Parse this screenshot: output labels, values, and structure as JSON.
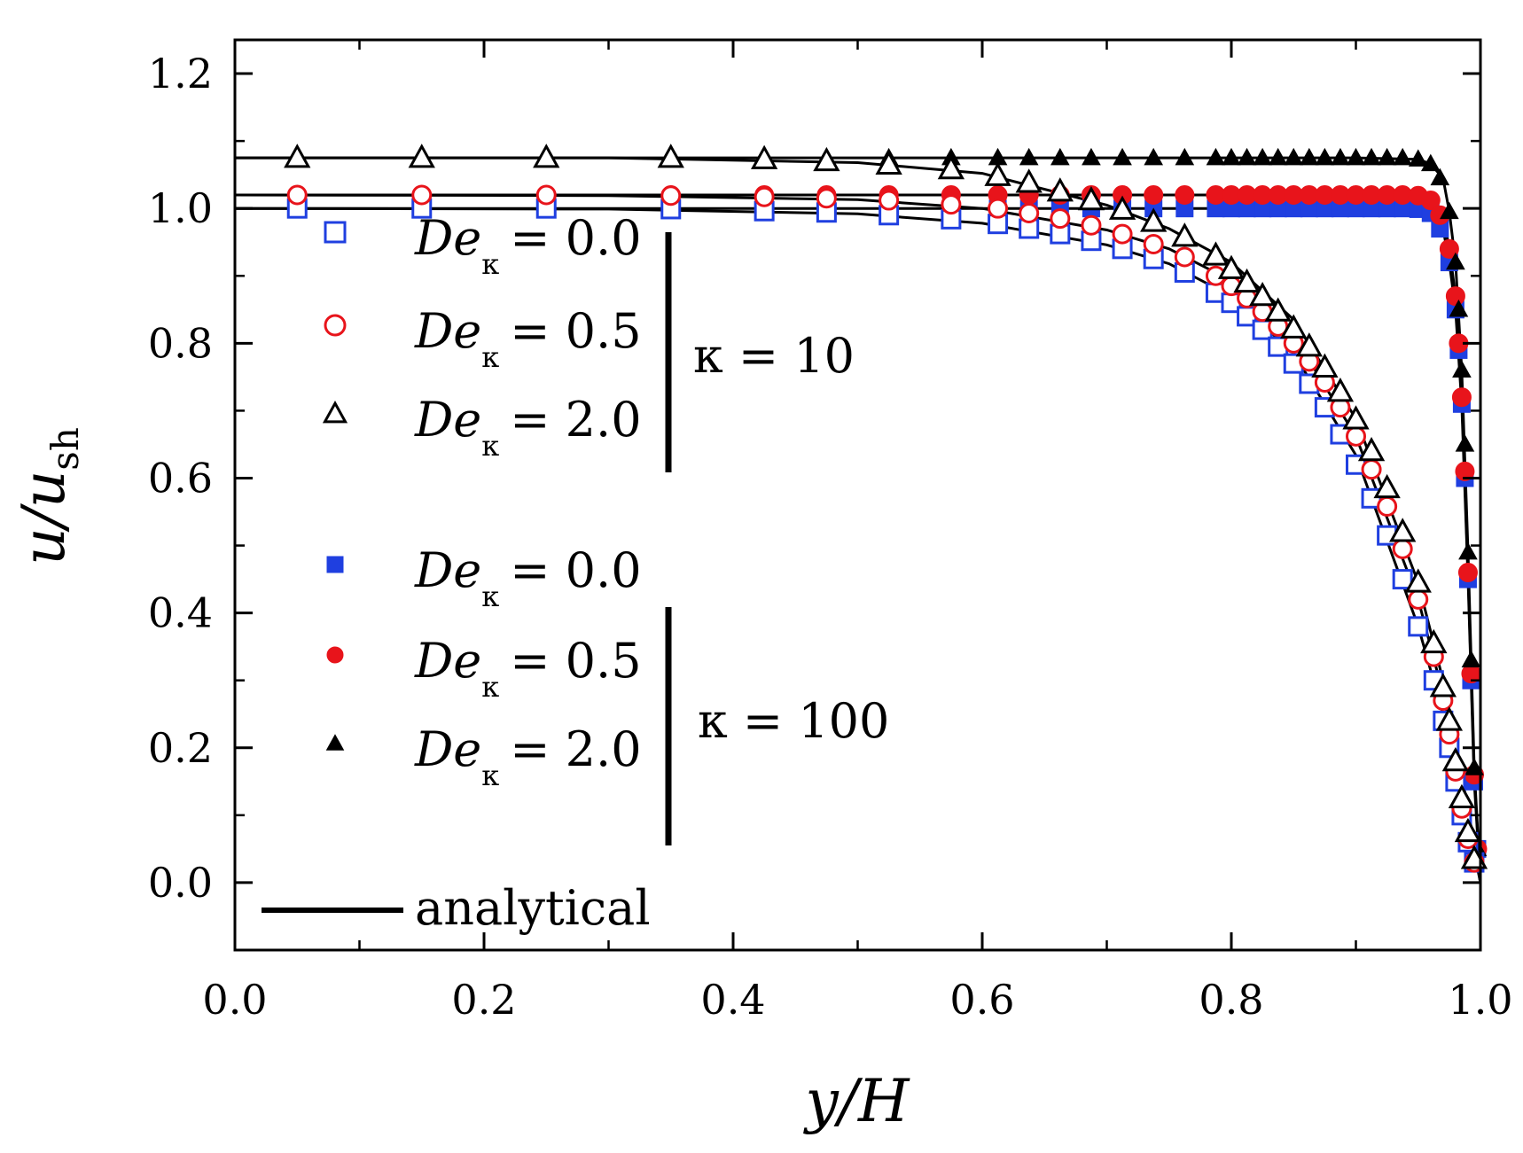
{
  "chart_data": {
    "type": "scatter",
    "title": "",
    "xlabel": "y/H",
    "ylabel_main": "u/u",
    "ylabel_sub": "sh",
    "xlim": [
      0.0,
      1.0
    ],
    "ylim": [
      -0.1,
      1.25
    ],
    "xticks": [
      "0.0",
      "0.2",
      "0.4",
      "0.6",
      "0.8",
      "1.0"
    ],
    "yticks": [
      "0.0",
      "0.2",
      "0.4",
      "0.6",
      "0.8",
      "1.0",
      "1.2"
    ],
    "legend": {
      "placement": "left",
      "de_symbol": "De",
      "de_sub": "κ",
      "group1_label": "κ = 10",
      "group2_label": "κ = 100",
      "entries": [
        {
          "value_text": "= 0.0"
        },
        {
          "value_text": "= 0.5"
        },
        {
          "value_text": "= 2.0"
        },
        {
          "value_text": "= 0.0"
        },
        {
          "value_text": "= 0.5"
        },
        {
          "value_text": "= 2.0"
        }
      ],
      "analytical_label": "analytical"
    },
    "series": [
      {
        "name": "De_k = 0.0, k = 10",
        "kappa": 10,
        "De": 0.0,
        "marker": "square",
        "filled": false,
        "color": "#1f3fe0",
        "x": [
          0.05,
          0.15,
          0.25,
          0.35,
          0.425,
          0.475,
          0.525,
          0.575,
          0.6125,
          0.6375,
          0.6625,
          0.6875,
          0.7125,
          0.7375,
          0.7625,
          0.7875,
          0.8,
          0.8125,
          0.825,
          0.8375,
          0.85,
          0.8625,
          0.875,
          0.8875,
          0.9,
          0.9125,
          0.925,
          0.9375,
          0.95,
          0.9625,
          0.97,
          0.975,
          0.98,
          0.985,
          0.99,
          0.995
        ],
        "y": [
          1.0,
          1.0,
          1.0,
          0.999,
          0.996,
          0.994,
          0.99,
          0.984,
          0.977,
          0.97,
          0.962,
          0.952,
          0.94,
          0.925,
          0.905,
          0.875,
          0.86,
          0.84,
          0.82,
          0.795,
          0.77,
          0.74,
          0.705,
          0.665,
          0.62,
          0.57,
          0.515,
          0.45,
          0.38,
          0.3,
          0.24,
          0.2,
          0.15,
          0.1,
          0.06,
          0.03
        ]
      },
      {
        "name": "De_k = 0.5, k = 10",
        "kappa": 10,
        "De": 0.5,
        "marker": "circle",
        "filled": false,
        "color": "#e8141b",
        "x": [
          0.05,
          0.15,
          0.25,
          0.35,
          0.425,
          0.475,
          0.525,
          0.575,
          0.6125,
          0.6375,
          0.6625,
          0.6875,
          0.7125,
          0.7375,
          0.7625,
          0.7875,
          0.8,
          0.8125,
          0.825,
          0.8375,
          0.85,
          0.8625,
          0.875,
          0.8875,
          0.9,
          0.9125,
          0.925,
          0.9375,
          0.95,
          0.9625,
          0.97,
          0.975,
          0.98,
          0.985,
          0.99,
          0.995
        ],
        "y": [
          1.02,
          1.02,
          1.02,
          1.019,
          1.017,
          1.015,
          1.012,
          1.006,
          1.0,
          0.993,
          0.985,
          0.975,
          0.962,
          0.947,
          0.928,
          0.9,
          0.885,
          0.867,
          0.847,
          0.825,
          0.8,
          0.773,
          0.742,
          0.705,
          0.662,
          0.613,
          0.558,
          0.495,
          0.42,
          0.335,
          0.27,
          0.22,
          0.165,
          0.11,
          0.065,
          0.03
        ]
      },
      {
        "name": "De_k = 2.0, k = 10",
        "kappa": 10,
        "De": 2.0,
        "marker": "triangle",
        "filled": false,
        "color": "#000000",
        "x": [
          0.05,
          0.15,
          0.25,
          0.35,
          0.425,
          0.475,
          0.525,
          0.575,
          0.6125,
          0.6375,
          0.6625,
          0.6875,
          0.7125,
          0.7375,
          0.7625,
          0.7875,
          0.8,
          0.8125,
          0.825,
          0.8375,
          0.85,
          0.8625,
          0.875,
          0.8875,
          0.9,
          0.9125,
          0.925,
          0.9375,
          0.95,
          0.9625,
          0.97,
          0.975,
          0.98,
          0.985,
          0.99,
          0.995
        ],
        "y": [
          1.075,
          1.075,
          1.075,
          1.075,
          1.073,
          1.07,
          1.065,
          1.058,
          1.048,
          1.038,
          1.025,
          1.012,
          0.998,
          0.98,
          0.958,
          0.93,
          0.91,
          0.89,
          0.87,
          0.847,
          0.822,
          0.795,
          0.764,
          0.728,
          0.687,
          0.64,
          0.585,
          0.52,
          0.445,
          0.355,
          0.29,
          0.24,
          0.18,
          0.125,
          0.075,
          0.035
        ]
      },
      {
        "name": "De_k = 0.0, k = 100",
        "kappa": 100,
        "De": 0.0,
        "marker": "square",
        "filled": true,
        "color": "#1f3fe0",
        "x": [
          0.05,
          0.15,
          0.25,
          0.35,
          0.425,
          0.475,
          0.525,
          0.575,
          0.6125,
          0.6375,
          0.6625,
          0.6875,
          0.7125,
          0.7375,
          0.7625,
          0.7875,
          0.8,
          0.8125,
          0.825,
          0.8375,
          0.85,
          0.8625,
          0.875,
          0.8875,
          0.9,
          0.9125,
          0.925,
          0.9375,
          0.95,
          0.96,
          0.9675,
          0.975,
          0.98,
          0.9825,
          0.985,
          0.9875,
          0.99,
          0.9925,
          0.995,
          0.9975
        ],
        "y": [
          1.0,
          1.0,
          1.0,
          1.0,
          1.0,
          1.0,
          1.0,
          1.0,
          1.0,
          1.0,
          1.0,
          1.0,
          1.0,
          1.0,
          1.0,
          1.0,
          1.0,
          1.0,
          1.0,
          1.0,
          1.0,
          1.0,
          1.0,
          1.0,
          1.0,
          1.0,
          1.0,
          1.0,
          0.999,
          0.993,
          0.97,
          0.92,
          0.85,
          0.79,
          0.71,
          0.6,
          0.45,
          0.3,
          0.15,
          0.05
        ]
      },
      {
        "name": "De_k = 0.5, k = 100",
        "kappa": 100,
        "De": 0.5,
        "marker": "circle",
        "filled": true,
        "color": "#e8141b",
        "x": [
          0.05,
          0.15,
          0.25,
          0.35,
          0.425,
          0.475,
          0.525,
          0.575,
          0.6125,
          0.6375,
          0.6625,
          0.6875,
          0.7125,
          0.7375,
          0.7625,
          0.7875,
          0.8,
          0.8125,
          0.825,
          0.8375,
          0.85,
          0.8625,
          0.875,
          0.8875,
          0.9,
          0.9125,
          0.925,
          0.9375,
          0.95,
          0.96,
          0.9675,
          0.975,
          0.98,
          0.9825,
          0.985,
          0.9875,
          0.99,
          0.9925,
          0.995,
          0.9975
        ],
        "y": [
          1.02,
          1.02,
          1.02,
          1.02,
          1.02,
          1.02,
          1.02,
          1.02,
          1.02,
          1.02,
          1.02,
          1.02,
          1.02,
          1.02,
          1.02,
          1.02,
          1.02,
          1.02,
          1.02,
          1.02,
          1.02,
          1.02,
          1.02,
          1.02,
          1.02,
          1.02,
          1.02,
          1.02,
          1.019,
          1.012,
          0.99,
          0.94,
          0.87,
          0.8,
          0.72,
          0.61,
          0.46,
          0.31,
          0.16,
          0.05
        ]
      },
      {
        "name": "De_k = 2.0, k = 100",
        "kappa": 100,
        "De": 2.0,
        "marker": "triangle",
        "filled": true,
        "color": "#000000",
        "x": [
          0.05,
          0.15,
          0.25,
          0.35,
          0.425,
          0.475,
          0.525,
          0.575,
          0.6125,
          0.6375,
          0.6625,
          0.6875,
          0.7125,
          0.7375,
          0.7625,
          0.7875,
          0.8,
          0.8125,
          0.825,
          0.8375,
          0.85,
          0.8625,
          0.875,
          0.8875,
          0.9,
          0.9125,
          0.925,
          0.9375,
          0.95,
          0.96,
          0.9675,
          0.975,
          0.98,
          0.9825,
          0.985,
          0.9875,
          0.99,
          0.9925,
          0.995,
          0.9975
        ],
        "y": [
          1.075,
          1.075,
          1.075,
          1.075,
          1.075,
          1.075,
          1.075,
          1.075,
          1.075,
          1.075,
          1.075,
          1.075,
          1.075,
          1.075,
          1.075,
          1.075,
          1.075,
          1.075,
          1.075,
          1.075,
          1.075,
          1.075,
          1.075,
          1.075,
          1.075,
          1.075,
          1.075,
          1.075,
          1.073,
          1.066,
          1.045,
          0.995,
          0.92,
          0.85,
          0.76,
          0.65,
          0.49,
          0.33,
          0.17,
          0.05
        ]
      }
    ],
    "analytical": [
      {
        "kappa": 10,
        "De": 0.0,
        "x": [
          0,
          0.3,
          0.5,
          0.6,
          0.7,
          0.75,
          0.8,
          0.85,
          0.9,
          0.95,
          0.97,
          0.99,
          1.0
        ],
        "y": [
          1.0,
          0.999,
          0.992,
          0.978,
          0.946,
          0.918,
          0.87,
          0.785,
          0.634,
          0.38,
          0.25,
          0.09,
          0.0
        ]
      },
      {
        "kappa": 10,
        "De": 0.5,
        "x": [
          0,
          0.3,
          0.5,
          0.6,
          0.7,
          0.75,
          0.8,
          0.85,
          0.9,
          0.95,
          0.97,
          0.99,
          1.0
        ],
        "y": [
          1.02,
          1.019,
          1.013,
          1.0,
          0.968,
          0.94,
          0.893,
          0.812,
          0.662,
          0.42,
          0.28,
          0.1,
          0.0
        ]
      },
      {
        "kappa": 10,
        "De": 2.0,
        "x": [
          0,
          0.3,
          0.5,
          0.6,
          0.7,
          0.75,
          0.8,
          0.85,
          0.9,
          0.95,
          0.97,
          0.99,
          1.0
        ],
        "y": [
          1.075,
          1.075,
          1.068,
          1.052,
          1.005,
          0.97,
          0.92,
          0.835,
          0.688,
          0.445,
          0.3,
          0.11,
          0.0
        ]
      },
      {
        "kappa": 100,
        "De": 0.0,
        "x": [
          0,
          0.9,
          0.95,
          0.96,
          0.97,
          0.975,
          0.98,
          0.985,
          0.99,
          0.995,
          1.0
        ],
        "y": [
          1.0,
          1.0,
          0.999,
          0.993,
          0.97,
          0.92,
          0.85,
          0.71,
          0.45,
          0.15,
          0.0
        ]
      },
      {
        "kappa": 100,
        "De": 0.5,
        "x": [
          0,
          0.9,
          0.95,
          0.96,
          0.97,
          0.975,
          0.98,
          0.985,
          0.99,
          0.995,
          1.0
        ],
        "y": [
          1.02,
          1.02,
          1.019,
          1.012,
          0.99,
          0.94,
          0.87,
          0.72,
          0.46,
          0.16,
          0.0
        ]
      },
      {
        "kappa": 100,
        "De": 2.0,
        "x": [
          0,
          0.9,
          0.95,
          0.96,
          0.97,
          0.975,
          0.98,
          0.985,
          0.99,
          0.995,
          1.0
        ],
        "y": [
          1.075,
          1.075,
          1.073,
          1.066,
          1.045,
          0.995,
          0.92,
          0.76,
          0.49,
          0.17,
          0.0
        ]
      }
    ],
    "colors": {
      "blue": "#1f3fe0",
      "red": "#e8141b",
      "black": "#000000"
    }
  }
}
